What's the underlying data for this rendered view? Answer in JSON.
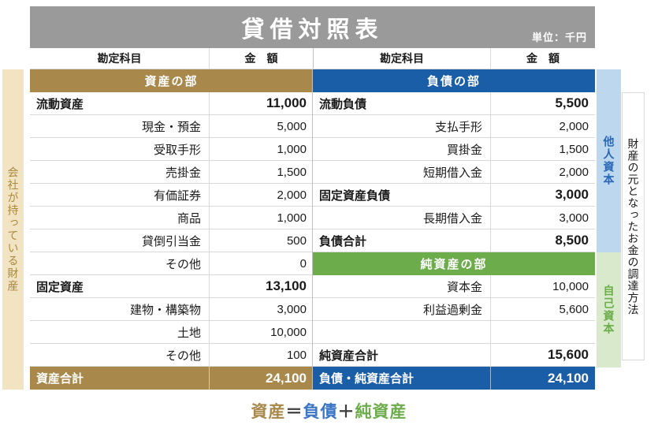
{
  "title": "貸借対照表",
  "unit_label": "単位：千円",
  "column_headers": {
    "account": "勘定科目",
    "amount": "金　額"
  },
  "colors": {
    "title_bar": "#9A9A9A",
    "assets_gold": "#A8894B",
    "liabilities_blue": "#1B5EA8",
    "net_assets_green": "#6CAC4B",
    "left_band_tan": "#F2E3C3",
    "other_capital_band": "#BDD7EE",
    "own_capital_band": "#D8E9CC",
    "formula_blue": "#3B76C6",
    "border_gray": "#D9D9D9"
  },
  "left_section": {
    "header": "資産の部",
    "rows": [
      {
        "label": "流動資産",
        "amount": "11,000"
      },
      {
        "label": "現金・預金",
        "amount": "5,000"
      },
      {
        "label": "受取手形",
        "amount": "1,000"
      },
      {
        "label": "売掛金",
        "amount": "1,500"
      },
      {
        "label": "有価証券",
        "amount": "2,000"
      },
      {
        "label": "商品",
        "amount": "1,000"
      },
      {
        "label": "貸倒引当金",
        "amount": "500"
      },
      {
        "label": "その他",
        "amount": "0"
      },
      {
        "label": "固定資産",
        "amount": "13,100"
      },
      {
        "label": "建物・構築物",
        "amount": "3,000"
      },
      {
        "label": "土地",
        "amount": "10,000"
      },
      {
        "label": "その他",
        "amount": "100"
      }
    ],
    "total": {
      "label": "資産合計",
      "amount": "24,100"
    }
  },
  "right_section": {
    "liabilities_header": "負債の部",
    "net_assets_header": "純資産の部",
    "rows": [
      {
        "label": "流動負債",
        "amount": "5,500"
      },
      {
        "label": "支払手形",
        "amount": "2,000"
      },
      {
        "label": "買掛金",
        "amount": "1,500"
      },
      {
        "label": "短期借入金",
        "amount": "2,000"
      },
      {
        "label": "固定資産負債",
        "amount": "3,000"
      },
      {
        "label": "長期借入金",
        "amount": "3,000"
      },
      {
        "label": "負債合計",
        "amount": "8,500"
      },
      {
        "label": "資本金",
        "amount": "10,000"
      },
      {
        "label": "利益過剰金",
        "amount": "5,600"
      },
      {
        "label": "",
        "amount": ""
      },
      {
        "label": "純資産合計",
        "amount": "15,600"
      }
    ],
    "total": {
      "label": "負債・純資産合計",
      "amount": "24,100"
    }
  },
  "side_labels": {
    "left": "会社が持っている財産",
    "other_capital": "他人資本",
    "own_capital": "自己資本",
    "right_outer": "財産の元となったお金の調達方法"
  },
  "formula": {
    "assets": "資産",
    "equals": "＝",
    "liabilities": "負債",
    "plus": "＋",
    "net_assets": "純資産"
  }
}
